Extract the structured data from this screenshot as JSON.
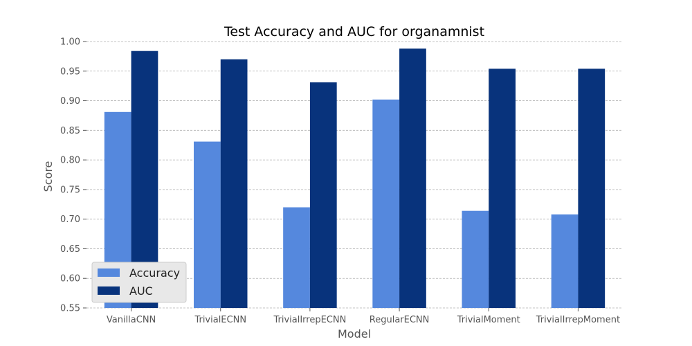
{
  "chart_data": {
    "type": "bar",
    "title": "Test Accuracy and AUC for organamnist",
    "xlabel": "Model",
    "ylabel": "Score",
    "ylim": [
      0.55,
      1.0
    ],
    "yticks": [
      "0.55",
      "0.60",
      "0.65",
      "0.70",
      "0.75",
      "0.80",
      "0.85",
      "0.90",
      "0.95",
      "1.00"
    ],
    "grid": true,
    "legend_position": "lower-left",
    "categories": [
      "VanillaCNN",
      "TrivialECNN",
      "TrivialIrrepECNN",
      "RegularECNN",
      "TrivialMoment",
      "TrivialIrrepMoment"
    ],
    "series": [
      {
        "name": "Accuracy",
        "color": "#5588dd",
        "values": [
          0.881,
          0.831,
          0.72,
          0.902,
          0.714,
          0.708
        ]
      },
      {
        "name": "AUC",
        "color": "#08337c",
        "values": [
          0.984,
          0.97,
          0.931,
          0.988,
          0.954,
          0.954
        ]
      }
    ]
  }
}
